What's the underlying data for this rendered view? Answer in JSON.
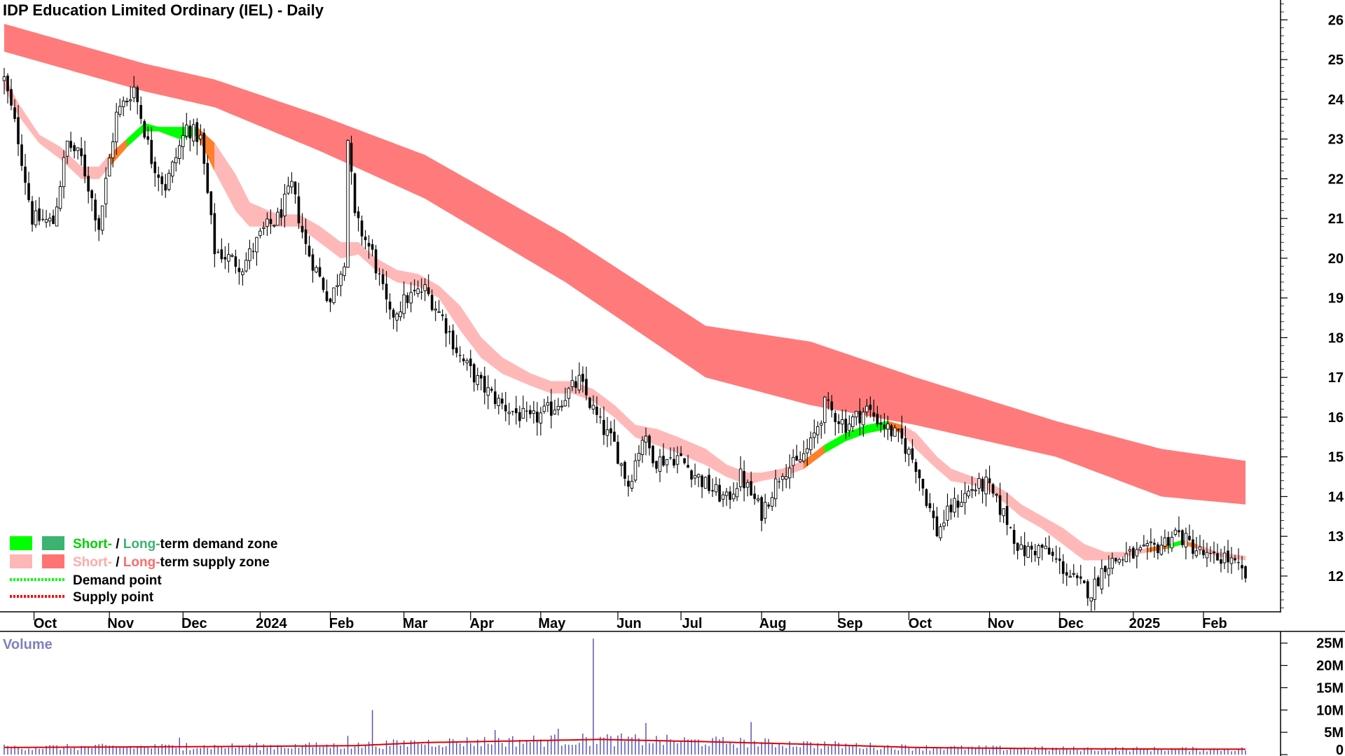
{
  "chart_data": {
    "type": "candlestick",
    "title": "IDP Education Limited Ordinary (IEL) - Daily",
    "price_axis": {
      "ticks": [
        12,
        13,
        14,
        15,
        16,
        17,
        18,
        19,
        20,
        21,
        22,
        23,
        24,
        25,
        26
      ],
      "range": [
        11.1,
        26.5
      ]
    },
    "date_axis": {
      "labels": [
        "Oct",
        "Nov",
        "Dec",
        "2024",
        "Feb",
        "Mar",
        "Apr",
        "May",
        "Jun",
        "Jul",
        "Aug",
        "Sep",
        "Oct",
        "Nov",
        "Dec",
        "2025",
        "Feb"
      ],
      "positions": [
        10.5,
        32,
        53,
        75,
        95,
        116,
        135,
        155,
        177,
        195,
        218,
        240,
        260,
        283,
        303,
        324,
        344
      ]
    },
    "bar_count": 355,
    "price_anchors": [
      [
        0,
        24.5
      ],
      [
        4,
        23.0
      ],
      [
        8,
        21.0
      ],
      [
        14,
        20.9
      ],
      [
        18,
        22.9
      ],
      [
        22,
        22.5
      ],
      [
        27,
        20.8
      ],
      [
        32,
        23.6
      ],
      [
        37,
        24.3
      ],
      [
        42,
        22.5
      ],
      [
        46,
        21.8
      ],
      [
        52,
        23.3
      ],
      [
        56,
        23.0
      ],
      [
        60,
        20.2
      ],
      [
        68,
        19.8
      ],
      [
        74,
        20.7
      ],
      [
        78,
        21.0
      ],
      [
        82,
        21.8
      ],
      [
        86,
        20.3
      ],
      [
        93,
        18.9
      ],
      [
        97,
        20.0
      ],
      [
        98,
        23.0
      ],
      [
        100,
        21.0
      ],
      [
        105,
        20.1
      ],
      [
        110,
        18.5
      ],
      [
        115,
        19.0
      ],
      [
        120,
        19.2
      ],
      [
        125,
        18.5
      ],
      [
        130,
        17.5
      ],
      [
        136,
        16.8
      ],
      [
        142,
        16.3
      ],
      [
        150,
        15.9
      ],
      [
        156,
        16.2
      ],
      [
        164,
        16.9
      ],
      [
        170,
        15.8
      ],
      [
        174,
        15.3
      ],
      [
        178,
        14.3
      ],
      [
        182,
        15.5
      ],
      [
        186,
        14.9
      ],
      [
        192,
        15.0
      ],
      [
        200,
        14.3
      ],
      [
        206,
        13.9
      ],
      [
        210,
        14.5
      ],
      [
        216,
        13.6
      ],
      [
        222,
        14.7
      ],
      [
        226,
        14.8
      ],
      [
        230,
        15.3
      ],
      [
        234,
        16.3
      ],
      [
        240,
        15.8
      ],
      [
        246,
        16.2
      ],
      [
        252,
        15.7
      ],
      [
        256,
        15.4
      ],
      [
        260,
        14.8
      ],
      [
        266,
        13.1
      ],
      [
        270,
        13.7
      ],
      [
        276,
        14.2
      ],
      [
        280,
        14.3
      ],
      [
        286,
        13.4
      ],
      [
        290,
        12.6
      ],
      [
        296,
        12.7
      ],
      [
        302,
        12.2
      ],
      [
        306,
        11.8
      ],
      [
        310,
        11.6
      ],
      [
        314,
        12.3
      ],
      [
        320,
        12.5
      ],
      [
        326,
        12.6
      ],
      [
        330,
        12.8
      ],
      [
        334,
        13.1
      ],
      [
        338,
        12.8
      ],
      [
        344,
        12.4
      ],
      [
        348,
        12.5
      ],
      [
        354,
        12.0
      ]
    ],
    "volume_axis": {
      "labels": [
        "25M",
        "20M",
        "15M",
        "10M",
        "5M",
        "0"
      ],
      "values": [
        25,
        20,
        15,
        10,
        5,
        0
      ],
      "unit": "M",
      "range": [
        0,
        27
      ]
    },
    "volume_label": "Volume",
    "volume_spikes": [
      [
        50,
        3.8
      ],
      [
        52,
        2.6
      ],
      [
        86,
        2.4
      ],
      [
        98,
        4.2
      ],
      [
        105,
        10.0
      ],
      [
        116,
        3.2
      ],
      [
        140,
        5.5
      ],
      [
        158,
        5.8
      ],
      [
        168,
        26.0
      ],
      [
        183,
        7.1
      ],
      [
        213,
        7.3
      ],
      [
        230,
        2.8
      ]
    ],
    "volume_avg_anchors": [
      [
        0,
        1.6
      ],
      [
        60,
        1.8
      ],
      [
        100,
        2.0
      ],
      [
        120,
        2.7
      ],
      [
        170,
        3.4
      ],
      [
        200,
        2.9
      ],
      [
        230,
        2.3
      ],
      [
        260,
        1.6
      ],
      [
        300,
        1.3
      ],
      [
        354,
        1.2
      ]
    ],
    "long_term_supply_zone": [
      [
        0,
        25.2,
        25.9
      ],
      [
        40,
        24.2,
        24.9
      ],
      [
        60,
        23.8,
        24.5
      ],
      [
        90,
        22.7,
        23.6
      ],
      [
        120,
        21.5,
        22.6
      ],
      [
        160,
        19.4,
        20.6
      ],
      [
        200,
        17.0,
        18.3
      ],
      [
        230,
        16.3,
        17.9
      ],
      [
        260,
        15.8,
        17.0
      ],
      [
        300,
        15.0,
        15.9
      ],
      [
        330,
        14.0,
        15.2
      ],
      [
        354,
        13.8,
        14.9
      ]
    ],
    "short_term_zone": [
      [
        0,
        24.3,
        24.6,
        "supply"
      ],
      [
        4,
        23.6,
        23.9,
        "supply"
      ],
      [
        10,
        22.9,
        23.1,
        "supply"
      ],
      [
        16,
        22.5,
        22.8,
        "supply"
      ],
      [
        22,
        22.0,
        22.3,
        "supply"
      ],
      [
        27,
        22.0,
        22.3,
        "supply"
      ],
      [
        30,
        22.3,
        22.6,
        "supply"
      ],
      [
        35,
        22.8,
        23.0,
        "demand"
      ],
      [
        40,
        23.2,
        23.4,
        "demand"
      ],
      [
        44,
        23.2,
        23.3,
        "demand"
      ],
      [
        50,
        23.0,
        23.3,
        "demand"
      ],
      [
        55,
        23.1,
        23.3,
        "demand"
      ],
      [
        60,
        22.2,
        22.9,
        "supply"
      ],
      [
        66,
        21.2,
        22.1,
        "supply"
      ],
      [
        70,
        20.8,
        21.4,
        "supply"
      ],
      [
        78,
        20.8,
        21.1,
        "supply"
      ],
      [
        84,
        20.8,
        21.1,
        "supply"
      ],
      [
        90,
        20.4,
        20.8,
        "supply"
      ],
      [
        96,
        20.0,
        20.4,
        "supply"
      ],
      [
        101,
        20.1,
        20.4,
        "supply"
      ],
      [
        106,
        19.7,
        20.0,
        "supply"
      ],
      [
        112,
        19.4,
        19.7,
        "supply"
      ],
      [
        118,
        19.3,
        19.6,
        "supply"
      ],
      [
        124,
        19.0,
        19.3,
        "supply"
      ],
      [
        130,
        18.2,
        18.8,
        "supply"
      ],
      [
        136,
        17.5,
        18.0,
        "supply"
      ],
      [
        142,
        17.1,
        17.5,
        "supply"
      ],
      [
        150,
        16.8,
        17.1,
        "supply"
      ],
      [
        156,
        16.6,
        16.9,
        "supply"
      ],
      [
        162,
        16.6,
        16.9,
        "supply"
      ],
      [
        168,
        16.4,
        16.7,
        "supply"
      ],
      [
        174,
        16.0,
        16.3,
        "supply"
      ],
      [
        180,
        15.5,
        15.8,
        "supply"
      ],
      [
        186,
        15.3,
        15.7,
        "supply"
      ],
      [
        192,
        15.1,
        15.5,
        "supply"
      ],
      [
        200,
        14.8,
        15.2,
        "supply"
      ],
      [
        206,
        14.5,
        14.8,
        "supply"
      ],
      [
        212,
        14.3,
        14.6,
        "supply"
      ],
      [
        216,
        14.4,
        14.6,
        "supply"
      ],
      [
        222,
        14.5,
        14.7,
        "supply"
      ],
      [
        228,
        14.7,
        14.9,
        "supply"
      ],
      [
        234,
        15.1,
        15.3,
        "demand"
      ],
      [
        240,
        15.4,
        15.6,
        "demand"
      ],
      [
        246,
        15.6,
        15.8,
        "demand"
      ],
      [
        252,
        15.7,
        15.9,
        "demand"
      ],
      [
        256,
        15.6,
        15.8,
        "supply"
      ],
      [
        260,
        15.2,
        15.6,
        "supply"
      ],
      [
        266,
        14.7,
        15.0,
        "supply"
      ],
      [
        270,
        14.4,
        14.7,
        "supply"
      ],
      [
        276,
        14.3,
        14.5,
        "supply"
      ],
      [
        280,
        14.2,
        14.4,
        "supply"
      ],
      [
        286,
        13.8,
        14.1,
        "supply"
      ],
      [
        290,
        13.5,
        13.8,
        "supply"
      ],
      [
        296,
        13.2,
        13.5,
        "supply"
      ],
      [
        302,
        12.8,
        13.2,
        "supply"
      ],
      [
        308,
        12.4,
        12.8,
        "supply"
      ],
      [
        314,
        12.4,
        12.6,
        "supply"
      ],
      [
        320,
        12.5,
        12.6,
        "supply"
      ],
      [
        326,
        12.6,
        12.7,
        "supply"
      ],
      [
        332,
        12.7,
        12.8,
        "demand"
      ],
      [
        336,
        12.8,
        12.9,
        "demand"
      ],
      [
        340,
        12.7,
        12.8,
        "supply"
      ],
      [
        346,
        12.5,
        12.6,
        "supply"
      ],
      [
        354,
        12.4,
        12.5,
        "supply"
      ]
    ],
    "legend": {
      "rows": [
        {
          "prefix": "Short-",
          "sep": " / ",
          "middle": "Long-",
          "suffix": "term demand zone",
          "swatches": [
            "#00ff00",
            "#3cb371"
          ],
          "prefix_color": "#00d000",
          "middle_color": "#3cb371"
        },
        {
          "prefix": "Short-",
          "sep": " / ",
          "middle": "Long-",
          "suffix": "term supply zone",
          "swatches": [
            "#ffb6b6",
            "#ff7373"
          ],
          "prefix_color": "#ffaaaa",
          "middle_color": "#ff6b6b"
        },
        {
          "label": "Demand point",
          "line_color": "#00ff00"
        },
        {
          "label": "Supply point",
          "line_color": "#ff0000"
        }
      ]
    },
    "colors": {
      "long_supply": "#ff7b7b",
      "short_supply": "#ffb8b8",
      "short_demand": "#00ff00",
      "transition": "#ff7f2a",
      "candle": "#000000",
      "volume_bar": "#4b4bb5",
      "volume_avg": "#e00000",
      "volume_label": "#8080c0"
    }
  }
}
